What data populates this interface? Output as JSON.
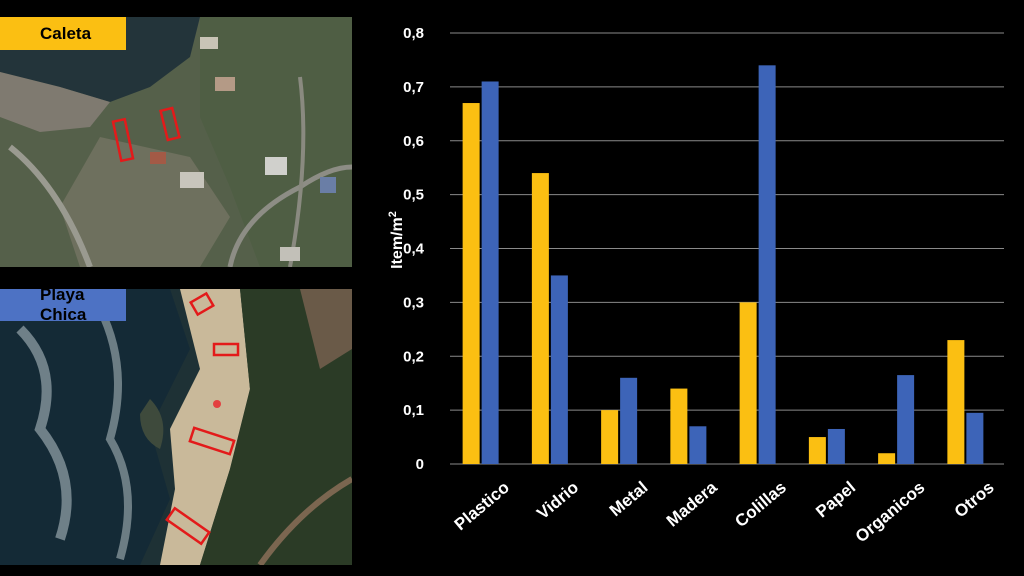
{
  "panels": {
    "top_label": "Caleta",
    "bottom_label": "Playa Chica"
  },
  "colors": {
    "series1": "#fbbf12",
    "series2": "#3d64b8",
    "grid": "#8a8a8a",
    "background": "#000000",
    "highlight_box": "#e31a1a"
  },
  "chart_data": {
    "type": "bar",
    "categories": [
      "Plastico",
      "Vidrio",
      "Metal",
      "Madera",
      "Colillas",
      "Papel",
      "Organicos",
      "Otros"
    ],
    "series": [
      {
        "color": "#fbbf12",
        "values": [
          0.67,
          0.54,
          0.1,
          0.14,
          0.3,
          0.05,
          0.02,
          0.23
        ]
      },
      {
        "color": "#3d64b8",
        "values": [
          0.71,
          0.35,
          0.16,
          0.07,
          0.74,
          0.065,
          0.165,
          0.095
        ]
      }
    ],
    "ylabel": "Item/m",
    "ylabel_sup": "2",
    "ylim": [
      0,
      0.8
    ],
    "yticks": [
      "0",
      "0,1",
      "0,2",
      "0,3",
      "0,4",
      "0,5",
      "0,6",
      "0,7",
      "0,8"
    ],
    "grid": true,
    "legend": "none"
  }
}
